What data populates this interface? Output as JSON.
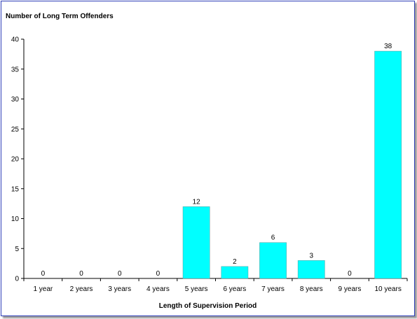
{
  "chart_data": {
    "type": "bar",
    "title": "",
    "ylabel": "Number of Long Term Offenders",
    "xlabel": "Length of Supervision Period",
    "categories": [
      "1 year",
      "2 years",
      "3 years",
      "4 years",
      "5 years",
      "6 years",
      "7 years",
      "8 years",
      "9 years",
      "10 years"
    ],
    "values": [
      0,
      0,
      0,
      0,
      12,
      2,
      6,
      3,
      0,
      38
    ],
    "ylim": [
      0,
      40
    ],
    "yticks": [
      0,
      5,
      10,
      15,
      20,
      25,
      30,
      35,
      40
    ],
    "data_labels": true,
    "grid": false,
    "legend": "none",
    "bar_color": "#00ffff",
    "frame_color": "#2f3fb8"
  }
}
